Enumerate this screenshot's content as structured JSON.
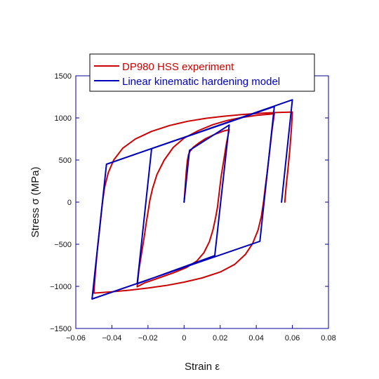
{
  "chart_data": {
    "type": "line",
    "xlabel": "Strain ε",
    "ylabel": "Stress σ (MPa)",
    "xlim": [
      -0.06,
      0.08
    ],
    "ylim": [
      -1500,
      1500
    ],
    "xticks": [
      "−0.06",
      "−0.04",
      "−0.02",
      "0",
      "0.02",
      "0.04",
      "0.06",
      "0.08"
    ],
    "yticks": [
      "−1500",
      "−1000",
      "−500",
      "0",
      "500",
      "1000",
      "1500"
    ],
    "grid": false,
    "legend_position": "top",
    "colors": {
      "experiment": "#cc0000",
      "model": "#0000bb",
      "axis": "#000099"
    },
    "series": [
      {
        "name": "DP980 HSS experiment",
        "points": [
          [
            0.0,
            0
          ],
          [
            0.0006,
            180
          ],
          [
            0.0012,
            360
          ],
          [
            0.0018,
            490
          ],
          [
            0.0024,
            560
          ],
          [
            0.0032,
            600
          ],
          [
            0.005,
            650
          ],
          [
            0.008,
            700
          ],
          [
            0.012,
            755
          ],
          [
            0.017,
            805
          ],
          [
            0.022,
            845
          ],
          [
            0.025,
            860
          ],
          [
            0.0235,
            700
          ],
          [
            0.022,
            500
          ],
          [
            0.0205,
            300
          ],
          [
            0.0195,
            120
          ],
          [
            0.0185,
            -60
          ],
          [
            0.0175,
            -180
          ],
          [
            0.016,
            -330
          ],
          [
            0.014,
            -470
          ],
          [
            0.011,
            -600
          ],
          [
            0.007,
            -700
          ],
          [
            0.001,
            -780
          ],
          [
            -0.006,
            -840
          ],
          [
            -0.014,
            -900
          ],
          [
            -0.022,
            -960
          ],
          [
            -0.026,
            -1005
          ],
          [
            -0.025,
            -800
          ],
          [
            -0.0235,
            -600
          ],
          [
            -0.022,
            -400
          ],
          [
            -0.021,
            -250
          ],
          [
            -0.02,
            -120
          ],
          [
            -0.019,
            20
          ],
          [
            -0.0175,
            160
          ],
          [
            -0.015,
            330
          ],
          [
            -0.011,
            500
          ],
          [
            -0.006,
            650
          ],
          [
            0.0,
            760
          ],
          [
            0.008,
            850
          ],
          [
            0.016,
            920
          ],
          [
            0.024,
            970
          ],
          [
            0.032,
            1005
          ],
          [
            0.04,
            1030
          ],
          [
            0.048,
            1045
          ],
          [
            0.05,
            1050
          ],
          [
            0.0487,
            850
          ],
          [
            0.0474,
            600
          ],
          [
            0.0462,
            380
          ],
          [
            0.045,
            180
          ],
          [
            0.044,
            0
          ],
          [
            0.0428,
            -170
          ],
          [
            0.041,
            -330
          ],
          [
            0.038,
            -490
          ],
          [
            0.034,
            -620
          ],
          [
            0.028,
            -740
          ],
          [
            0.02,
            -830
          ],
          [
            0.01,
            -900
          ],
          [
            0.0,
            -950
          ],
          [
            -0.01,
            -990
          ],
          [
            -0.02,
            -1020
          ],
          [
            -0.03,
            -1045
          ],
          [
            -0.04,
            -1065
          ],
          [
            -0.05,
            -1080
          ],
          [
            -0.0492,
            -850
          ],
          [
            -0.0482,
            -600
          ],
          [
            -0.0472,
            -400
          ],
          [
            -0.0462,
            -200
          ],
          [
            -0.0452,
            0
          ],
          [
            -0.044,
            180
          ],
          [
            -0.042,
            350
          ],
          [
            -0.039,
            500
          ],
          [
            -0.034,
            640
          ],
          [
            -0.027,
            750
          ],
          [
            -0.018,
            840
          ],
          [
            -0.008,
            910
          ],
          [
            0.002,
            960
          ],
          [
            0.012,
            995
          ],
          [
            0.022,
            1020
          ],
          [
            0.032,
            1040
          ],
          [
            0.042,
            1055
          ],
          [
            0.052,
            1065
          ],
          [
            0.06,
            1070
          ],
          [
            0.0594,
            850
          ],
          [
            0.0585,
            600
          ],
          [
            0.0575,
            380
          ],
          [
            0.0566,
            200
          ],
          [
            0.0558,
            0
          ]
        ]
      },
      {
        "name": "Linear kinematic hardening model",
        "points": [
          [
            0.0,
            0
          ],
          [
            0.003,
            615
          ],
          [
            0.025,
            915
          ],
          [
            0.017,
            -635
          ],
          [
            -0.026,
            -970
          ],
          [
            -0.018,
            635
          ],
          [
            0.05,
            1135
          ],
          [
            0.042,
            -465
          ],
          [
            -0.051,
            -1150
          ],
          [
            -0.043,
            450
          ],
          [
            0.06,
            1215
          ],
          [
            0.054,
            0
          ]
        ]
      }
    ]
  }
}
